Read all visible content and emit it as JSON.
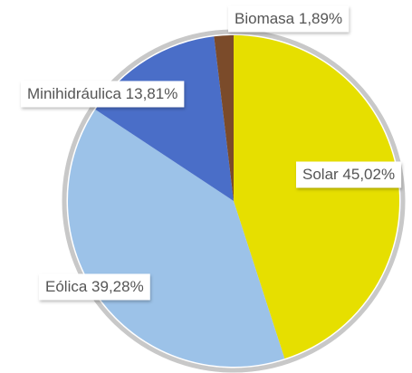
{
  "chart_data": {
    "type": "pie",
    "categories": [
      "Solar",
      "Eólica",
      "Minihidráulica",
      "Biomasa"
    ],
    "values": [
      45.02,
      39.28,
      13.81,
      1.89
    ],
    "value_labels": [
      "45,02%",
      "39,28%",
      "13,81%",
      "1,89%"
    ],
    "colors": [
      "#e6df00",
      "#9cc2e8",
      "#4a6ec8",
      "#7b4b2a"
    ]
  }
}
